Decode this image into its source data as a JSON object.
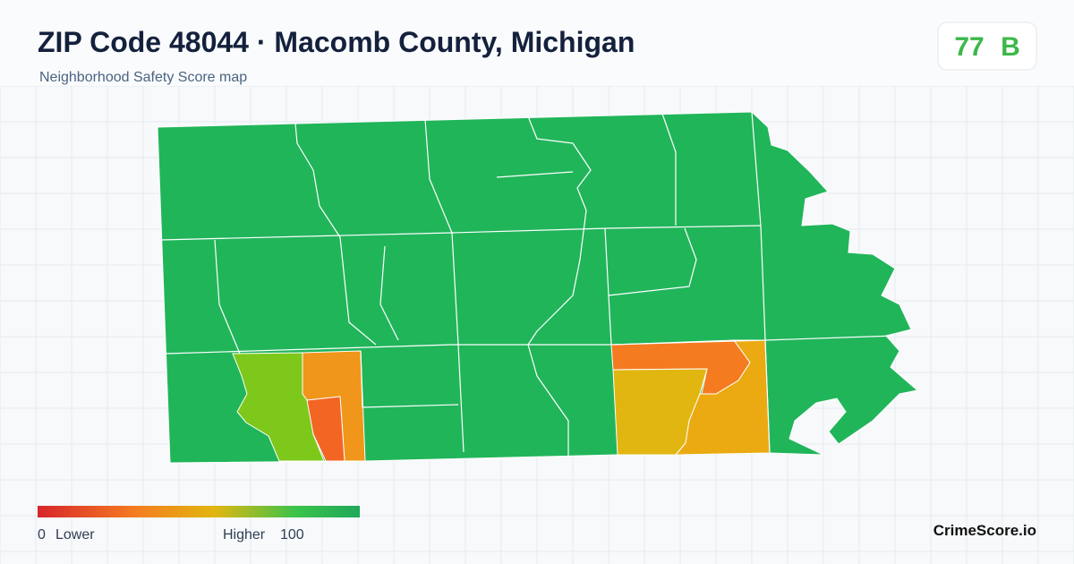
{
  "header": {
    "title": "ZIP Code 48044 · Macomb County, Michigan",
    "subtitle": "Neighborhood Safety Score map"
  },
  "score": {
    "value": 77,
    "grade": "B"
  },
  "legend": {
    "min": 0,
    "min_label": "Lower",
    "max_label": "Higher",
    "max": 100
  },
  "footer": {
    "brand": "CrimeScore.io"
  }
}
